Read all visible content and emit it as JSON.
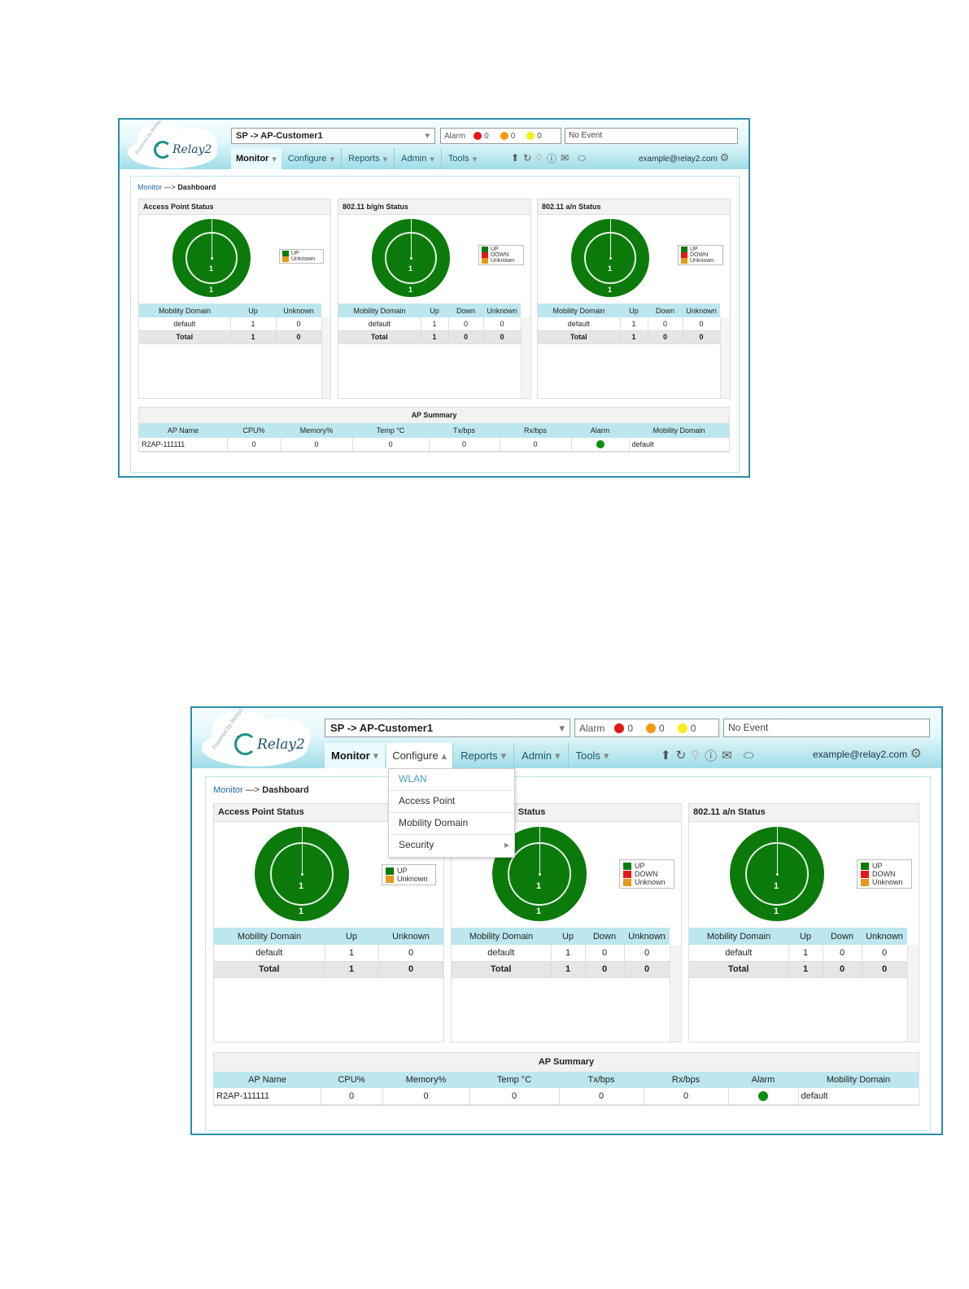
{
  "brand": {
    "logo_text": "Relay2",
    "powered_text": "Powered by Relay2"
  },
  "header": {
    "customer_select": "SP -> AP-Customer1",
    "alarm": {
      "label": "Alarm",
      "red_count": "0",
      "orange_count": "0",
      "yellow_count": "0",
      "colors": {
        "red": "#e8141b",
        "orange": "#f39a12",
        "yellow": "#f6ee1b"
      }
    },
    "event_text": "No Event",
    "user_email": "example@relay2.com"
  },
  "nav": {
    "monitor": "Monitor",
    "configure": "Configure",
    "reports": "Reports",
    "admin": "Admin",
    "tools": "Tools"
  },
  "breadcrumb": {
    "parent": "Monitor",
    "sep": "—>",
    "current": "Dashboard"
  },
  "panels": {
    "ap_status": {
      "title": "Access Point Status",
      "donut_center": "1",
      "donut_bottom": "1",
      "legend": [
        "UP",
        "Unknown"
      ],
      "headers": [
        "Mobility Domain",
        "Up",
        "Unknown"
      ],
      "rows": [
        [
          "default",
          "1",
          "0"
        ]
      ],
      "total": [
        "Total",
        "1",
        "0"
      ]
    },
    "bgn_status": {
      "title": "802.11 b/g/n Status",
      "title_partial": "n Status",
      "donut_center": "1",
      "donut_bottom": "1",
      "legend": [
        "UP",
        "DOWN",
        "Unknown"
      ],
      "headers": [
        "Mobility Domain",
        "Up",
        "Down",
        "Unknown"
      ],
      "rows": [
        [
          "default",
          "1",
          "0",
          "0"
        ]
      ],
      "total": [
        "Total",
        "1",
        "0",
        "0"
      ]
    },
    "an_status": {
      "title": "802.11 a/n Status",
      "donut_center": "1",
      "donut_bottom": "1",
      "legend": [
        "UP",
        "DOWN",
        "Unknown"
      ],
      "headers": [
        "Mobility Domain",
        "Up",
        "Down",
        "Unknown"
      ],
      "rows": [
        [
          "default",
          "1",
          "0",
          "0"
        ]
      ],
      "total": [
        "Total",
        "1",
        "0",
        "0"
      ]
    }
  },
  "legend_colors": {
    "UP": "#0b7a0b",
    "DOWN": "#e8141b",
    "Unknown": "#e39a1a"
  },
  "ap_summary": {
    "title": "AP Summary",
    "headers": [
      "AP Name",
      "CPU%",
      "Memory%",
      "Temp °C",
      "Tx/bps",
      "Rx/bps",
      "Alarm",
      "Mobility Domain"
    ],
    "row": {
      "name": "R2AP-111111",
      "cpu": "0",
      "memory": "0",
      "temp": "0",
      "tx": "0",
      "rx": "0",
      "domain": "default"
    }
  },
  "configure_menu": {
    "items": [
      "WLAN",
      "Access Point",
      "Mobility Domain",
      "Security"
    ]
  }
}
